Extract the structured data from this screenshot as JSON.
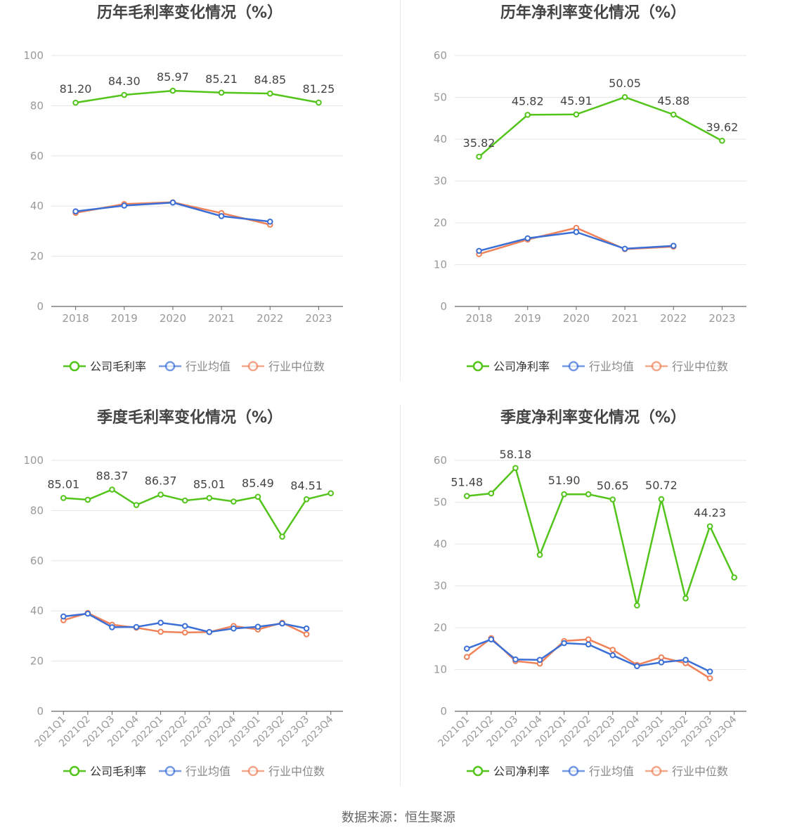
{
  "colors": {
    "company": "#52c41a",
    "industry_avg": "#3b6fd6",
    "industry_median": "#f08259",
    "axis_text": "#999999",
    "grid": "#e6e6e6",
    "title": "#444444"
  },
  "footer": {
    "source": "数据来源：恒生聚源"
  },
  "chart_data": [
    {
      "type": "line",
      "title": "历年毛利率变化情况（%）",
      "categories": [
        "2018",
        "2019",
        "2020",
        "2021",
        "2022",
        "2023"
      ],
      "ylim": [
        0,
        100
      ],
      "yticks": [
        "0",
        "20",
        "40",
        "60",
        "80",
        "100"
      ],
      "series": [
        {
          "name": "公司毛利率",
          "values": [
            81.2,
            84.3,
            85.97,
            85.21,
            84.85,
            81.25
          ],
          "labels": [
            "81.20",
            "84.30",
            "85.97",
            "85.21",
            "84.85",
            "81.25"
          ]
        },
        {
          "name": "行业均值",
          "values": [
            37.9,
            40.2,
            41.4,
            36.0,
            33.8,
            null
          ]
        },
        {
          "name": "行业中位数",
          "values": [
            37.3,
            40.8,
            41.5,
            37.2,
            32.6,
            null
          ]
        }
      ],
      "legend": "bottom"
    },
    {
      "type": "line",
      "title": "历年净利率变化情况（%）",
      "categories": [
        "2018",
        "2019",
        "2020",
        "2021",
        "2022",
        "2023"
      ],
      "ylim": [
        0,
        60
      ],
      "yticks": [
        "0",
        "10",
        "20",
        "30",
        "40",
        "50",
        "60"
      ],
      "series": [
        {
          "name": "公司净利率",
          "values": [
            35.82,
            45.82,
            45.91,
            50.05,
            45.88,
            39.62
          ],
          "labels": [
            "35.82",
            "45.82",
            "45.91",
            "50.05",
            "45.88",
            "39.62"
          ]
        },
        {
          "name": "行业均值",
          "values": [
            13.3,
            16.3,
            17.8,
            13.8,
            14.5,
            null
          ]
        },
        {
          "name": "行业中位数",
          "values": [
            12.5,
            16.0,
            18.8,
            13.7,
            14.3,
            null
          ]
        }
      ],
      "legend": "bottom"
    },
    {
      "type": "line",
      "title": "季度毛利率变化情况（%）",
      "categories": [
        "2021Q1",
        "2021Q2",
        "2021Q3",
        "2021Q4",
        "2022Q1",
        "2022Q2",
        "2022Q3",
        "2022Q4",
        "2023Q1",
        "2023Q2",
        "2023Q3",
        "2023Q4"
      ],
      "ylim": [
        0,
        100
      ],
      "yticks": [
        "0",
        "20",
        "40",
        "60",
        "80",
        "100"
      ],
      "series": [
        {
          "name": "公司毛利率",
          "values": [
            85.01,
            84.3,
            88.37,
            82.2,
            86.37,
            84.0,
            85.01,
            83.6,
            85.49,
            69.6,
            84.51,
            86.9
          ],
          "labels": [
            "85.01",
            "",
            "88.37",
            "",
            "86.37",
            "",
            "85.01",
            "",
            "85.49",
            "",
            "84.51",
            ""
          ]
        },
        {
          "name": "行业均值",
          "values": [
            37.8,
            38.9,
            33.5,
            33.6,
            35.3,
            34.0,
            31.6,
            33.0,
            33.7,
            35.0,
            33.0,
            null
          ]
        },
        {
          "name": "行业中位数",
          "values": [
            36.3,
            39.2,
            34.5,
            33.3,
            31.7,
            31.4,
            31.6,
            34.0,
            32.6,
            35.3,
            30.7,
            null
          ]
        }
      ],
      "legend": "bottom"
    },
    {
      "type": "line",
      "title": "季度净利率变化情况（%）",
      "categories": [
        "2021Q1",
        "2021Q2",
        "2021Q3",
        "2021Q4",
        "2022Q1",
        "2022Q2",
        "2022Q3",
        "2022Q4",
        "2023Q1",
        "2023Q2",
        "2023Q3",
        "2023Q4"
      ],
      "ylim": [
        0,
        60
      ],
      "yticks": [
        "0",
        "10",
        "20",
        "30",
        "40",
        "50",
        "60"
      ],
      "series": [
        {
          "name": "公司净利率",
          "values": [
            51.48,
            52.1,
            58.18,
            37.4,
            51.9,
            51.9,
            50.65,
            25.3,
            50.72,
            27.0,
            44.23,
            32.0
          ],
          "labels": [
            "51.48",
            "",
            "58.18",
            "",
            "51.90",
            "",
            "50.65",
            "",
            "50.72",
            "",
            "44.23",
            ""
          ]
        },
        {
          "name": "行业均值",
          "values": [
            15.0,
            17.2,
            12.4,
            12.3,
            16.3,
            16.0,
            13.4,
            10.8,
            11.7,
            12.3,
            9.5,
            null
          ]
        },
        {
          "name": "行业中位数",
          "values": [
            13.0,
            17.5,
            12.0,
            11.4,
            16.8,
            17.2,
            14.7,
            11.1,
            12.9,
            11.5,
            7.9,
            null
          ]
        }
      ],
      "legend": "bottom"
    }
  ]
}
